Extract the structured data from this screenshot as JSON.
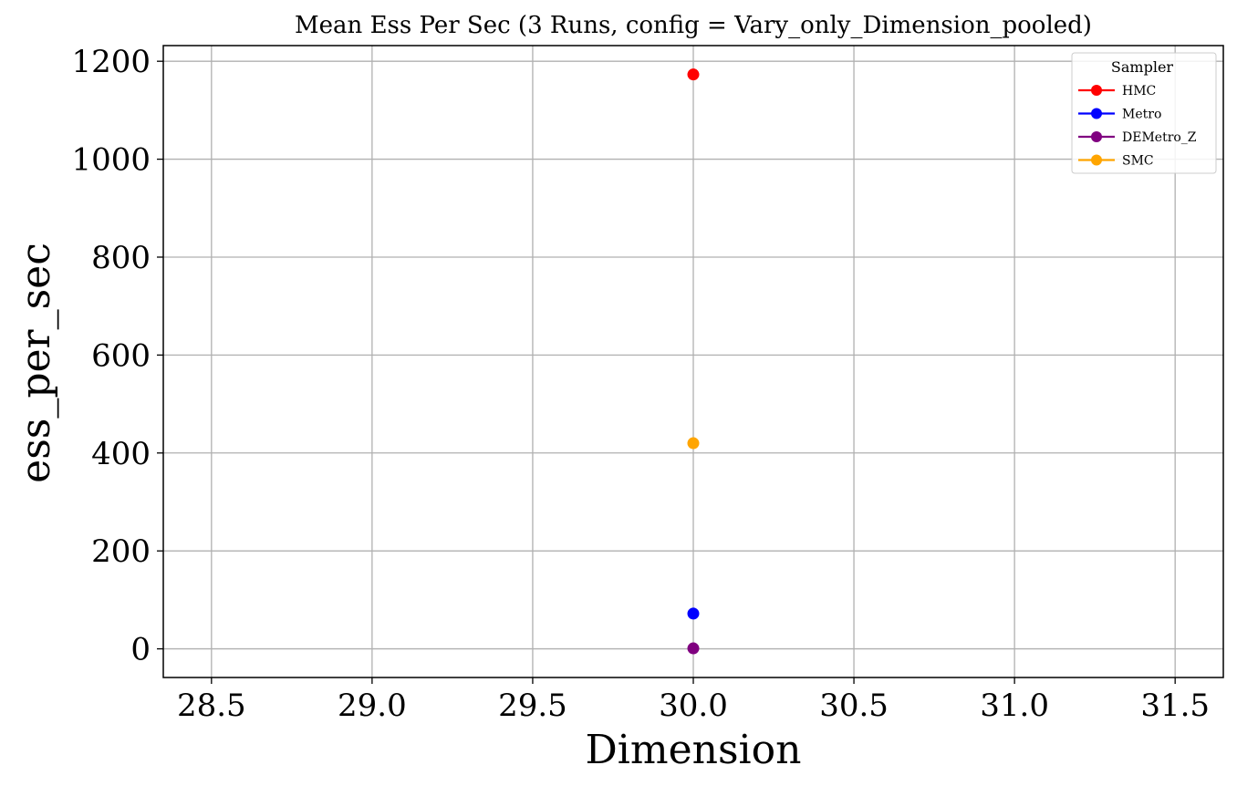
{
  "chart_data": {
    "type": "scatter",
    "title": "Mean Ess Per Sec (3 Runs, config = Vary_only_Dimension_pooled)",
    "xlabel": "Dimension",
    "ylabel": "ess_per_sec",
    "xlim": [
      28.35,
      31.65
    ],
    "ylim": [
      -58.5,
      1232
    ],
    "x_ticks": [
      28.5,
      29.0,
      29.5,
      30.0,
      30.5,
      31.0,
      31.5
    ],
    "x_tick_labels": [
      "28.5",
      "29.0",
      "29.5",
      "30.0",
      "30.5",
      "31.0",
      "31.5"
    ],
    "y_ticks": [
      0,
      200,
      400,
      600,
      800,
      1000,
      1200
    ],
    "y_tick_labels": [
      "0",
      "200",
      "400",
      "600",
      "800",
      "1000",
      "1200"
    ],
    "grid": true,
    "legend": {
      "title": "Sampler",
      "placement": "top-right"
    },
    "series": [
      {
        "name": "HMC",
        "color": "#ff0000",
        "x": [
          30.0
        ],
        "y": [
          1173
        ]
      },
      {
        "name": "Metro",
        "color": "#0000ff",
        "x": [
          30.0
        ],
        "y": [
          72
        ]
      },
      {
        "name": "DEMetro_Z",
        "color": "#800080",
        "x": [
          30.0
        ],
        "y": [
          1
        ]
      },
      {
        "name": "SMC",
        "color": "#ffa500",
        "x": [
          30.0
        ],
        "y": [
          420
        ]
      }
    ]
  }
}
